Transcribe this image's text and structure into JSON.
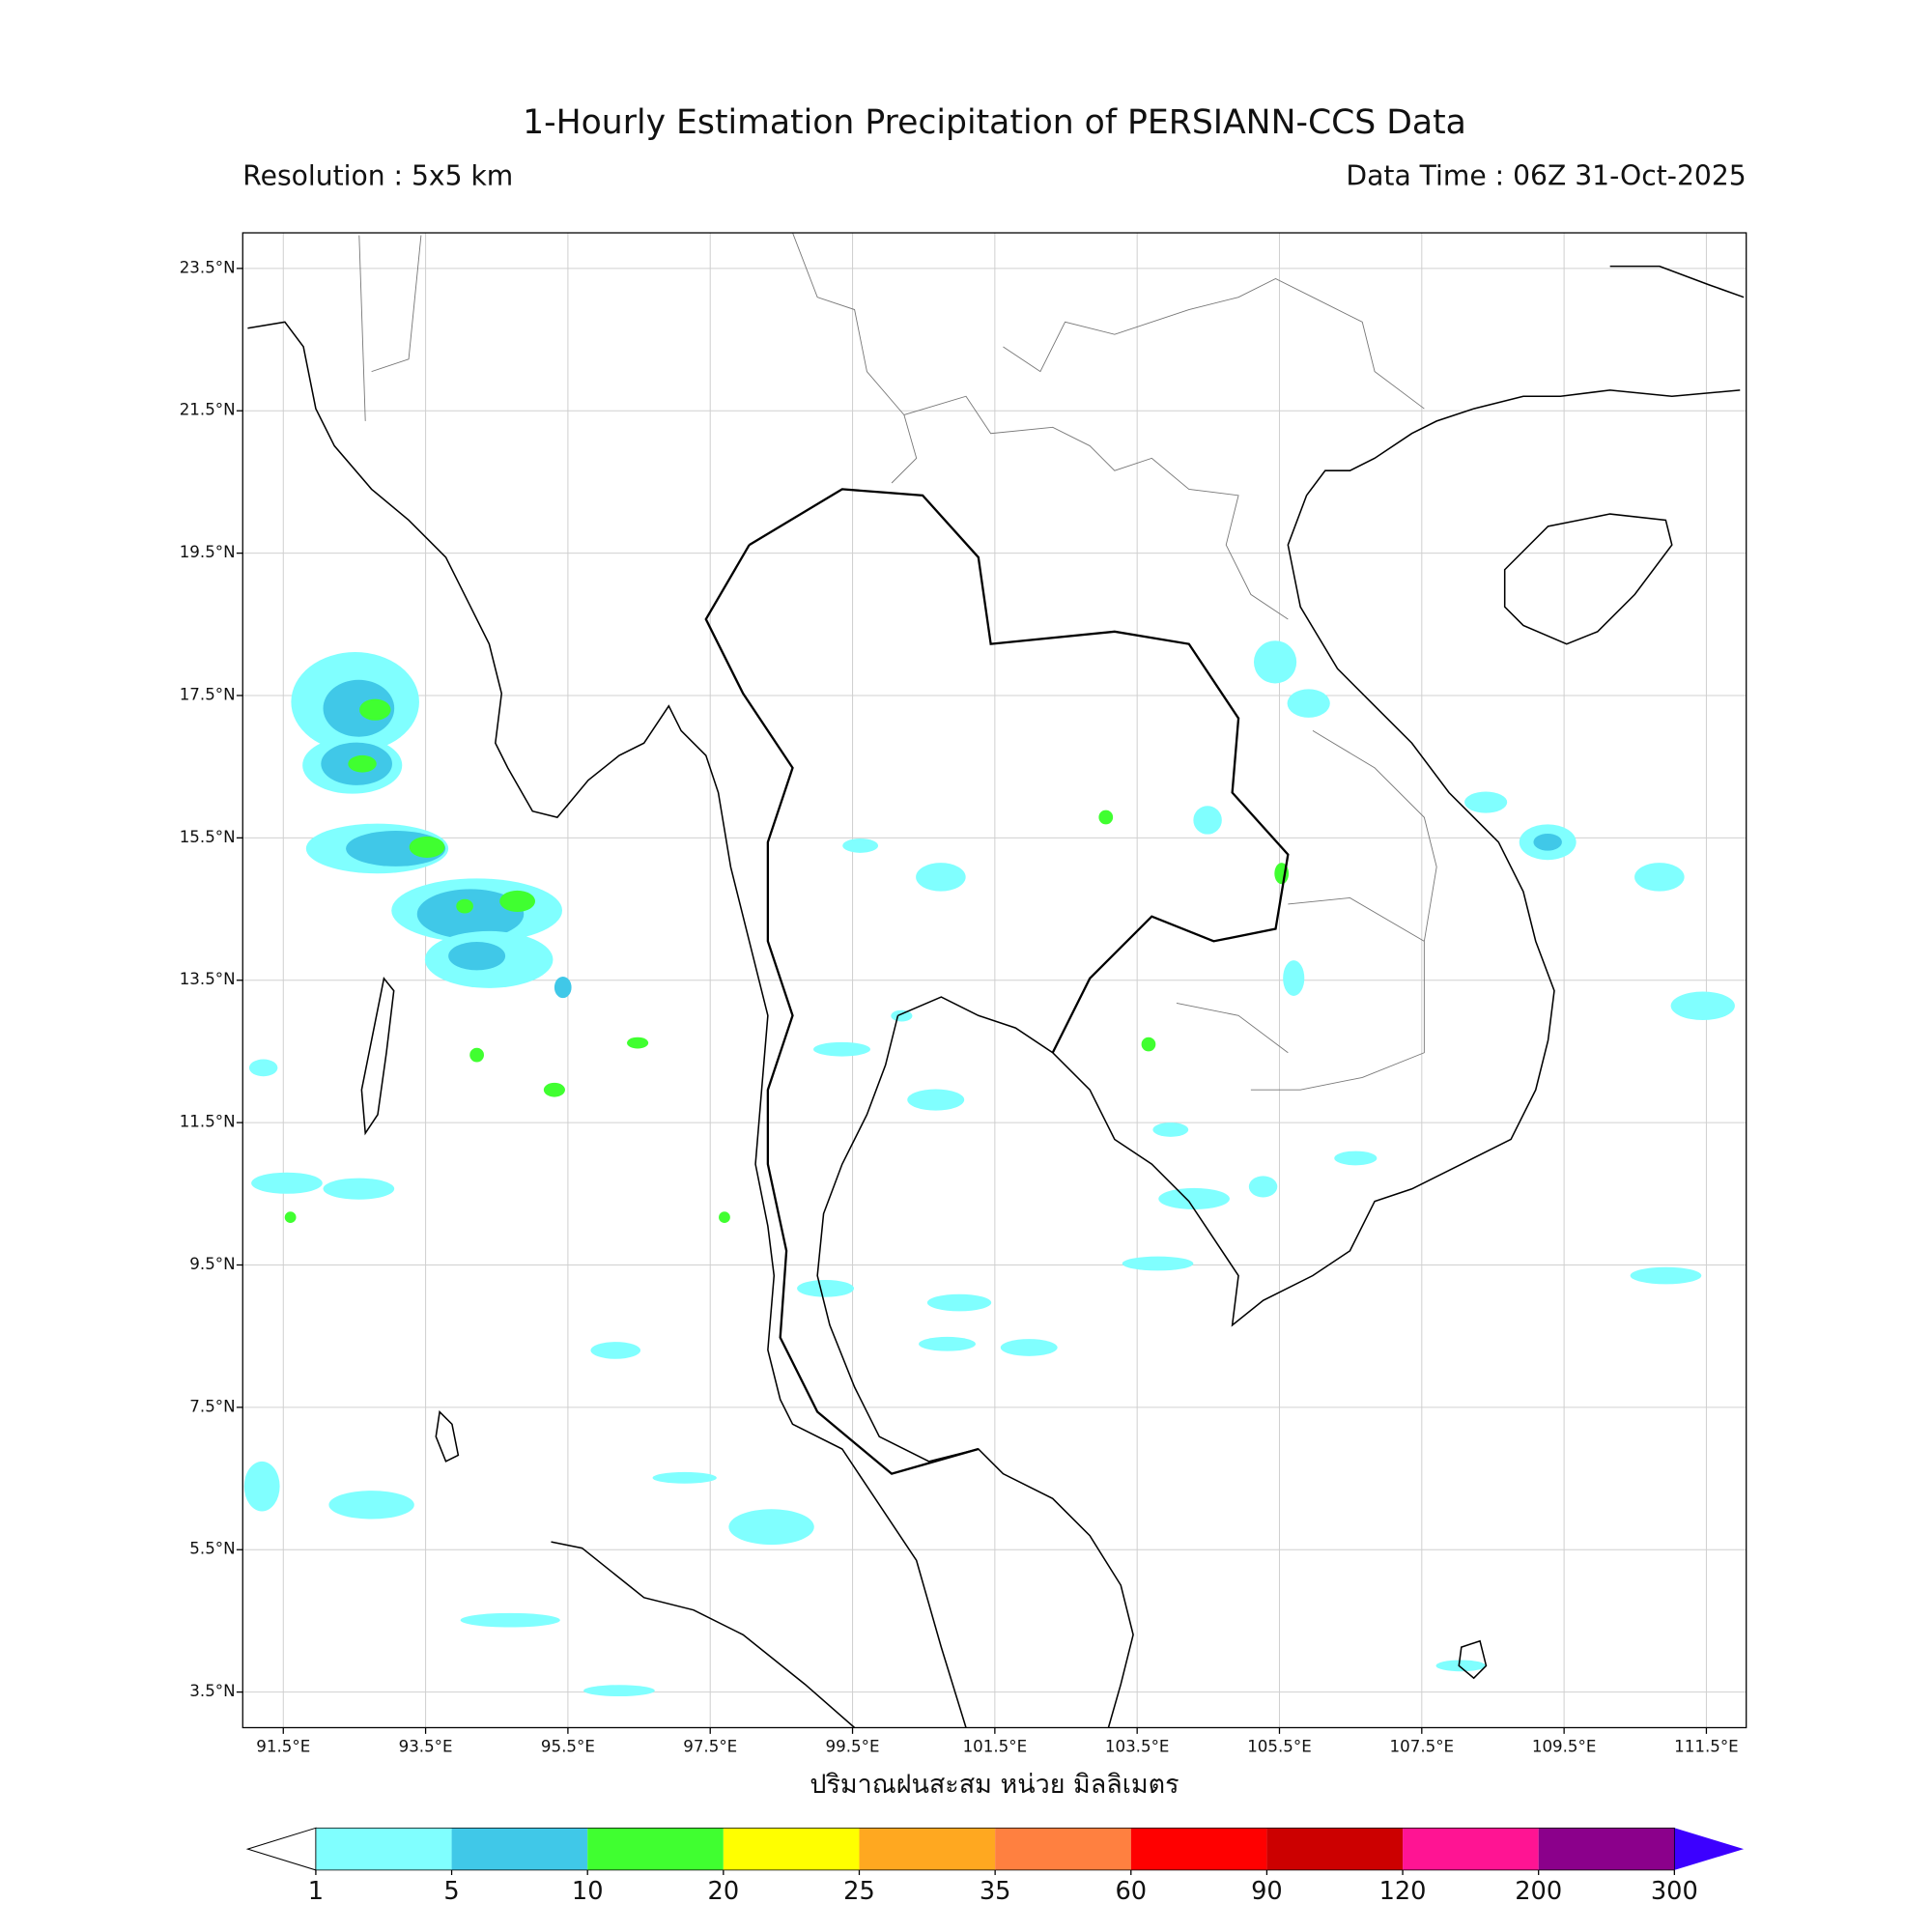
{
  "header": {
    "title": "1-Hourly Estimation Precipitation of PERSIANN-CCS Data",
    "resolution": "Resolution : 5x5 km",
    "data_time": "Data Time : 06Z 31-Oct-2025"
  },
  "map": {
    "lonlim": [
      90.93,
      112.06
    ],
    "latlim": [
      3.0,
      24.0
    ],
    "grid": true,
    "lonticks": [
      {
        "value": 91.5,
        "label": "91.5°E"
      },
      {
        "value": 93.5,
        "label": "93.5°E"
      },
      {
        "value": 95.5,
        "label": "95.5°E"
      },
      {
        "value": 97.5,
        "label": "97.5°E"
      },
      {
        "value": 99.5,
        "label": "99.5°E"
      },
      {
        "value": 101.5,
        "label": "101.5°E"
      },
      {
        "value": 103.5,
        "label": "103.5°E"
      },
      {
        "value": 105.5,
        "label": "105.5°E"
      },
      {
        "value": 107.5,
        "label": "107.5°E"
      },
      {
        "value": 109.5,
        "label": "109.5°E"
      },
      {
        "value": 111.5,
        "label": "111.5°E"
      }
    ],
    "latticks": [
      {
        "value": 23.5,
        "label": "23.5°N"
      },
      {
        "value": 21.5,
        "label": "21.5°N"
      },
      {
        "value": 19.5,
        "label": "19.5°N"
      },
      {
        "value": 17.5,
        "label": "17.5°N"
      },
      {
        "value": 15.5,
        "label": "15.5°N"
      },
      {
        "value": 13.5,
        "label": "13.5°N"
      },
      {
        "value": 11.5,
        "label": "11.5°N"
      },
      {
        "value": 9.5,
        "label": "9.5°N"
      },
      {
        "value": 7.5,
        "label": "7.5°N"
      },
      {
        "value": 5.5,
        "label": "5.5°N"
      },
      {
        "value": 3.5,
        "label": "3.5°N"
      }
    ],
    "xlabel": "ปริมาณฝนสะสม หน่วย มิลลิเมตร",
    "rain": [
      {
        "lon": 92.51,
        "lat": 17.41,
        "rx": 0.9,
        "ry": 0.7,
        "value": 3
      },
      {
        "lon": 92.56,
        "lat": 17.32,
        "rx": 0.5,
        "ry": 0.4,
        "value": 7
      },
      {
        "lon": 92.79,
        "lat": 17.3,
        "rx": 0.22,
        "ry": 0.15,
        "value": 12
      },
      {
        "lon": 92.47,
        "lat": 16.52,
        "rx": 0.7,
        "ry": 0.4,
        "value": 3
      },
      {
        "lon": 92.53,
        "lat": 16.54,
        "rx": 0.5,
        "ry": 0.3,
        "value": 7
      },
      {
        "lon": 92.61,
        "lat": 16.54,
        "rx": 0.2,
        "ry": 0.12,
        "value": 14
      },
      {
        "lon": 92.82,
        "lat": 15.35,
        "rx": 1.0,
        "ry": 0.35,
        "value": 3
      },
      {
        "lon": 93.08,
        "lat": 15.35,
        "rx": 0.7,
        "ry": 0.25,
        "value": 7
      },
      {
        "lon": 93.52,
        "lat": 15.37,
        "rx": 0.25,
        "ry": 0.15,
        "value": 12
      },
      {
        "lon": 94.22,
        "lat": 14.48,
        "rx": 1.2,
        "ry": 0.45,
        "value": 3
      },
      {
        "lon": 94.13,
        "lat": 14.43,
        "rx": 0.75,
        "ry": 0.35,
        "value": 7
      },
      {
        "lon": 94.79,
        "lat": 14.61,
        "rx": 0.25,
        "ry": 0.15,
        "value": 12
      },
      {
        "lon": 94.05,
        "lat": 14.54,
        "rx": 0.12,
        "ry": 0.1,
        "value": 11
      },
      {
        "lon": 94.39,
        "lat": 13.79,
        "rx": 0.9,
        "ry": 0.4,
        "value": 3
      },
      {
        "lon": 94.22,
        "lat": 13.84,
        "rx": 0.4,
        "ry": 0.2,
        "value": 6
      },
      {
        "lon": 105.44,
        "lat": 17.97,
        "rx": 0.3,
        "ry": 0.3,
        "value": 3
      },
      {
        "lon": 105.91,
        "lat": 17.39,
        "rx": 0.3,
        "ry": 0.2,
        "value": 3
      },
      {
        "lon": 109.27,
        "lat": 15.44,
        "rx": 0.4,
        "ry": 0.25,
        "value": 3
      },
      {
        "lon": 109.27,
        "lat": 15.44,
        "rx": 0.2,
        "ry": 0.12,
        "value": 6
      },
      {
        "lon": 108.4,
        "lat": 16.0,
        "rx": 0.3,
        "ry": 0.15,
        "value": 3
      },
      {
        "lon": 110.84,
        "lat": 14.95,
        "rx": 0.35,
        "ry": 0.2,
        "value": 3
      },
      {
        "lon": 111.45,
        "lat": 13.14,
        "rx": 0.45,
        "ry": 0.2,
        "value": 3
      },
      {
        "lon": 110.93,
        "lat": 9.35,
        "rx": 0.5,
        "ry": 0.12,
        "value": 3
      },
      {
        "lon": 100.74,
        "lat": 14.95,
        "rx": 0.35,
        "ry": 0.2,
        "value": 3
      },
      {
        "lon": 99.61,
        "lat": 15.39,
        "rx": 0.25,
        "ry": 0.1,
        "value": 3
      },
      {
        "lon": 103.06,
        "lat": 15.79,
        "rx": 0.1,
        "ry": 0.1,
        "value": 12
      },
      {
        "lon": 104.49,
        "lat": 15.75,
        "rx": 0.2,
        "ry": 0.2,
        "value": 4
      },
      {
        "lon": 105.53,
        "lat": 15.0,
        "rx": 0.1,
        "ry": 0.15,
        "value": 12
      },
      {
        "lon": 100.67,
        "lat": 11.82,
        "rx": 0.4,
        "ry": 0.15,
        "value": 3
      },
      {
        "lon": 99.35,
        "lat": 12.53,
        "rx": 0.4,
        "ry": 0.1,
        "value": 3
      },
      {
        "lon": 100.19,
        "lat": 13.0,
        "rx": 0.15,
        "ry": 0.08,
        "value": 4
      },
      {
        "lon": 91.55,
        "lat": 10.65,
        "rx": 0.5,
        "ry": 0.15,
        "value": 3
      },
      {
        "lon": 92.56,
        "lat": 10.57,
        "rx": 0.5,
        "ry": 0.15,
        "value": 3
      },
      {
        "lon": 91.6,
        "lat": 10.17,
        "rx": 0.08,
        "ry": 0.08,
        "value": 12
      },
      {
        "lon": 91.22,
        "lat": 12.27,
        "rx": 0.2,
        "ry": 0.12,
        "value": 3
      },
      {
        "lon": 91.2,
        "lat": 6.39,
        "rx": 0.25,
        "ry": 0.35,
        "value": 3
      },
      {
        "lon": 92.74,
        "lat": 6.13,
        "rx": 0.6,
        "ry": 0.2,
        "value": 3
      },
      {
        "lon": 98.36,
        "lat": 5.82,
        "rx": 0.6,
        "ry": 0.25,
        "value": 3
      },
      {
        "lon": 97.14,
        "lat": 6.51,
        "rx": 0.45,
        "ry": 0.08,
        "value": 3
      },
      {
        "lon": 94.69,
        "lat": 4.51,
        "rx": 0.7,
        "ry": 0.1,
        "value": 3
      },
      {
        "lon": 96.22,
        "lat": 3.52,
        "rx": 0.5,
        "ry": 0.08,
        "value": 3
      },
      {
        "lon": 96.17,
        "lat": 8.3,
        "rx": 0.35,
        "ry": 0.12,
        "value": 3
      },
      {
        "lon": 100.83,
        "lat": 8.39,
        "rx": 0.4,
        "ry": 0.1,
        "value": 3
      },
      {
        "lon": 101.98,
        "lat": 8.34,
        "rx": 0.4,
        "ry": 0.12,
        "value": 3
      },
      {
        "lon": 101.0,
        "lat": 8.97,
        "rx": 0.45,
        "ry": 0.12,
        "value": 3
      },
      {
        "lon": 103.79,
        "lat": 9.52,
        "rx": 0.5,
        "ry": 0.1,
        "value": 3
      },
      {
        "lon": 104.3,
        "lat": 10.43,
        "rx": 0.5,
        "ry": 0.15,
        "value": 3
      },
      {
        "lon": 105.27,
        "lat": 10.6,
        "rx": 0.2,
        "ry": 0.15,
        "value": 3
      },
      {
        "lon": 106.57,
        "lat": 11.0,
        "rx": 0.3,
        "ry": 0.1,
        "value": 3
      },
      {
        "lon": 108.05,
        "lat": 3.87,
        "rx": 0.35,
        "ry": 0.08,
        "value": 3
      },
      {
        "lon": 96.48,
        "lat": 12.62,
        "rx": 0.15,
        "ry": 0.08,
        "value": 12
      },
      {
        "lon": 95.31,
        "lat": 11.96,
        "rx": 0.15,
        "ry": 0.1,
        "value": 12
      },
      {
        "lon": 94.22,
        "lat": 12.45,
        "rx": 0.1,
        "ry": 0.1,
        "value": 10
      },
      {
        "lon": 95.43,
        "lat": 13.4,
        "rx": 0.12,
        "ry": 0.15,
        "value": 5
      },
      {
        "lon": 99.12,
        "lat": 9.17,
        "rx": 0.4,
        "ry": 0.12,
        "value": 3
      },
      {
        "lon": 97.7,
        "lat": 10.17,
        "rx": 0.08,
        "ry": 0.08,
        "value": 12
      },
      {
        "lon": 105.7,
        "lat": 13.53,
        "rx": 0.15,
        "ry": 0.25,
        "value": 3
      },
      {
        "lon": 103.66,
        "lat": 12.6,
        "rx": 0.1,
        "ry": 0.1,
        "value": 10
      },
      {
        "lon": 103.97,
        "lat": 11.4,
        "rx": 0.25,
        "ry": 0.1,
        "value": 3
      }
    ]
  },
  "colorbar": {
    "levels": [
      1,
      5,
      10,
      20,
      25,
      35,
      60,
      90,
      120,
      200,
      300
    ],
    "colors": [
      "#80ffff",
      "#40c8e8",
      "#40ff30",
      "#ffff00",
      "#ffa820",
      "#ff8040",
      "#ff0000",
      "#cc0000",
      "#ff1493",
      "#8b008b"
    ],
    "under_color": "#ffffff",
    "over_color": "#3c00ff"
  }
}
